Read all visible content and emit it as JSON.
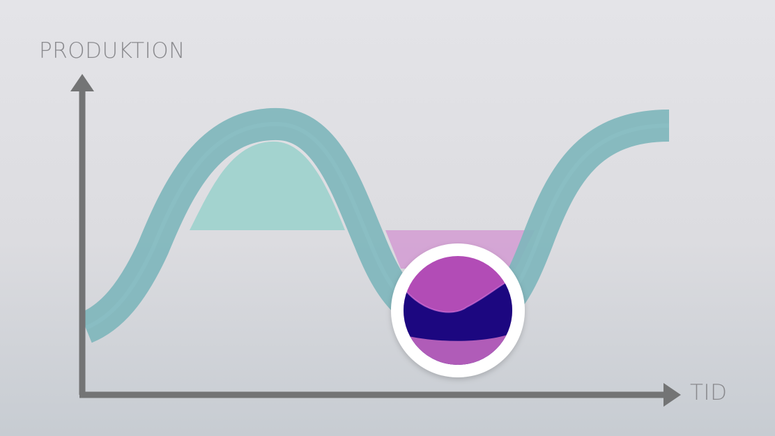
{
  "diagram": {
    "y_axis_label": "PRODUKTION",
    "x_axis_label": "TID"
  },
  "colors": {
    "axis": "#737475",
    "wave": "#7fb6bc",
    "surplus_fill": "#a3d3cf",
    "deficit_fill": "#d4a2d4",
    "storage_magenta": "#b24cb6",
    "storage_dark": "#1c0780",
    "storage_ring": "#ffffff"
  },
  "icons": {
    "storage_badge": "storage-circle-icon",
    "y_arrow": "arrow-up-icon",
    "x_arrow": "arrow-right-icon"
  }
}
